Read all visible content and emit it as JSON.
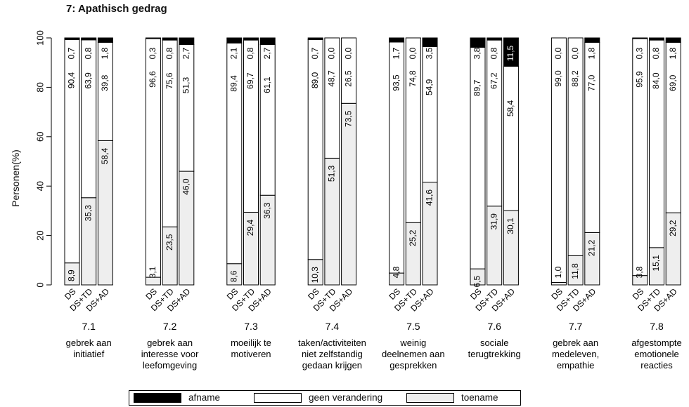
{
  "chart_data": {
    "type": "bar",
    "stacked": true,
    "title": "7: Apathisch gedrag",
    "ylabel": "Personen(%)",
    "ylim": [
      0,
      100
    ],
    "yticks": [
      "0",
      "20",
      "40",
      "60",
      "80",
      "100"
    ],
    "legend_position": "bottom",
    "legend": [
      {
        "name": "afname",
        "color": "#000000"
      },
      {
        "name": "geen verandering",
        "color": "#ffffff"
      },
      {
        "name": "toename",
        "color": "#eeeeee"
      }
    ],
    "groups": [
      {
        "code": "7.1",
        "label": [
          "gebrek aan",
          "initiatief"
        ],
        "bars": [
          {
            "name": "DS",
            "toename": "8,9",
            "geen": "90,4",
            "afname": "0,7"
          },
          {
            "name": "DS+TD",
            "toename": "35,3",
            "geen": "63,9",
            "afname": "0,8"
          },
          {
            "name": "DS+AD",
            "toename": "58,4",
            "geen": "39,8",
            "afname": "1,8"
          }
        ]
      },
      {
        "code": "7.2",
        "label": [
          "gebrek aan",
          "interesse voor",
          "leefomgeving"
        ],
        "bars": [
          {
            "name": "DS",
            "toename": "3,1",
            "geen": "96,6",
            "afname": "0,3"
          },
          {
            "name": "DS+TD",
            "toename": "23,5",
            "geen": "75,6",
            "afname": "0,8"
          },
          {
            "name": "DS+AD",
            "toename": "46,0",
            "geen": "51,3",
            "afname": "2,7"
          }
        ]
      },
      {
        "code": "7.3",
        "label": [
          "moeilijk te",
          "motiveren"
        ],
        "bars": [
          {
            "name": "DS",
            "toename": "8,6",
            "geen": "89,4",
            "afname": "2,1"
          },
          {
            "name": "DS+TD",
            "toename": "29,4",
            "geen": "69,7",
            "afname": "0,8"
          },
          {
            "name": "DS+AD",
            "toename": "36,3",
            "geen": "61,1",
            "afname": "2,7"
          }
        ]
      },
      {
        "code": "7.4",
        "label": [
          "taken/activiteiten",
          "niet zelfstandig",
          "gedaan krijgen"
        ],
        "bars": [
          {
            "name": "DS",
            "toename": "10,3",
            "geen": "89,0",
            "afname": "0,7"
          },
          {
            "name": "DS+TD",
            "toename": "51,3",
            "geen": "48,7",
            "afname": "0,0"
          },
          {
            "name": "DS+AD",
            "toename": "73,5",
            "geen": "26,5",
            "afname": "0,0"
          }
        ]
      },
      {
        "code": "7.5",
        "label": [
          "weinig",
          "deelnemen aan",
          "gesprekken"
        ],
        "bars": [
          {
            "name": "DS",
            "toename": "4,8",
            "geen": "93,5",
            "afname": "1,7"
          },
          {
            "name": "DS+TD",
            "toename": "25,2",
            "geen": "74,8",
            "afname": "0,0"
          },
          {
            "name": "DS+AD",
            "toename": "41,6",
            "geen": "54,9",
            "afname": "3,5"
          }
        ]
      },
      {
        "code": "7.6",
        "label": [
          "sociale",
          "terugtrekking"
        ],
        "bars": [
          {
            "name": "DS",
            "toename": "6,5",
            "geen": "89,7",
            "afname": "3,8"
          },
          {
            "name": "DS+TD",
            "toename": "31,9",
            "geen": "67,2",
            "afname": "0,8"
          },
          {
            "name": "DS+AD",
            "toename": "30,1",
            "geen": "58,4",
            "afname": "11,5"
          }
        ]
      },
      {
        "code": "7.7",
        "label": [
          "gebrek aan",
          "medeleven,",
          "empathie"
        ],
        "bars": [
          {
            "name": "DS",
            "toename": "1,0",
            "geen": "99,0",
            "afname": "0,0"
          },
          {
            "name": "DS+TD",
            "toename": "11,8",
            "geen": "88,2",
            "afname": "0,0"
          },
          {
            "name": "DS+AD",
            "toename": "21,2",
            "geen": "77,0",
            "afname": "1,8"
          }
        ]
      },
      {
        "code": "7.8",
        "label": [
          "afgestompte",
          "emotionele",
          "reacties"
        ],
        "bars": [
          {
            "name": "DS",
            "toename": "3,8",
            "geen": "95,9",
            "afname": "0,3"
          },
          {
            "name": "DS+TD",
            "toename": "15,1",
            "geen": "84,0",
            "afname": "0,8"
          },
          {
            "name": "DS+AD",
            "toename": "29,2",
            "geen": "69,0",
            "afname": "1,8"
          }
        ]
      }
    ]
  }
}
